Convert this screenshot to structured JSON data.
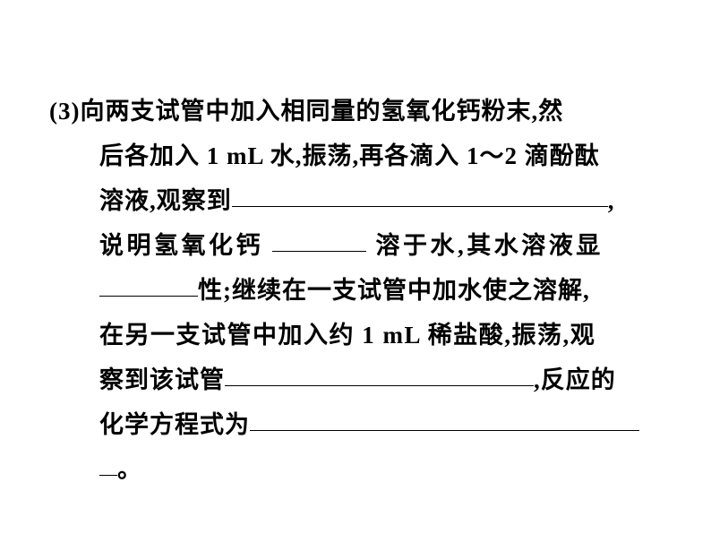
{
  "question": {
    "number": "(3)",
    "line1_text": "向两支试管中加入相同量的氢氧化钙粉末,然",
    "line2_text": "后各加入 1 mL 水,振荡,再各滴入 1～2 滴酚酞",
    "line3_prefix": "溶液,观察到",
    "line3_suffix": ",",
    "line4_part1": "说明氢氧化钙",
    "line4_part2": "溶于水,其水溶液显",
    "line5_part1": "",
    "line5_part2": "性;继续在一支试管中加水使之溶解,",
    "line6_text": "在另一支试管中加入约 1 mL 稀盐酸,振荡,观",
    "line7_prefix": "察到该试管",
    "line7_suffix": ",反应的",
    "line8_prefix": "化学方程式为",
    "line9_suffix": "。"
  },
  "style": {
    "font_size": 27,
    "line_height": 1.85,
    "text_color": "#000000",
    "background_color": "#ffffff",
    "blank_border_color": "#000000",
    "letter_spacing": 1
  }
}
